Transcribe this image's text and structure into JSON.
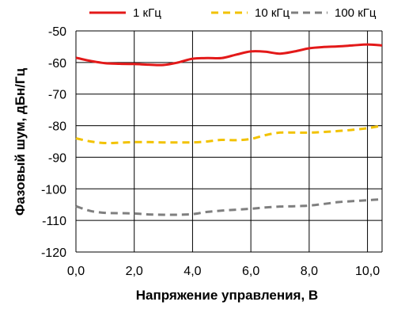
{
  "chart_data": {
    "type": "line",
    "xlabel": "Напряжение управления, В",
    "ylabel": "Фазовый шум, дБн/Гц",
    "xlim": [
      0,
      10.5
    ],
    "ylim": [
      -120,
      -50
    ],
    "x_ticks": [
      0,
      2,
      4,
      6,
      8,
      10
    ],
    "x_tick_labels": [
      "0,0",
      "2,0",
      "4,0",
      "6,0",
      "8,0",
      "10,0"
    ],
    "y_ticks": [
      -50,
      -60,
      -70,
      -80,
      -90,
      -100,
      -110,
      -120
    ],
    "y_tick_labels": [
      "-50",
      "-60",
      "-70",
      "-80",
      "-90",
      "-100",
      "-110",
      "-120"
    ],
    "grid": "horizontal",
    "legend_position": "top",
    "series": [
      {
        "name": "1 кГц",
        "color": "#e31919",
        "style": "solid",
        "x": [
          0,
          0.5,
          1,
          1.5,
          2,
          2.5,
          3,
          3.5,
          4,
          4.5,
          5,
          5.5,
          6,
          6.5,
          7,
          7.5,
          8,
          8.5,
          9,
          9.5,
          10,
          10.5
        ],
        "y": [
          -58.5,
          -59.5,
          -60.2,
          -60.4,
          -60.5,
          -60.7,
          -60.8,
          -60.0,
          -58.8,
          -58.6,
          -58.6,
          -57.5,
          -56.5,
          -56.6,
          -57.2,
          -56.5,
          -55.5,
          -55.1,
          -54.9,
          -54.6,
          -54.3,
          -54.6
        ]
      },
      {
        "name": "10 кГц",
        "color": "#f2c200",
        "style": "dashed",
        "x": [
          0,
          0.5,
          1,
          1.5,
          2,
          2.5,
          3,
          3.5,
          4,
          4.5,
          5,
          5.5,
          6,
          6.5,
          7,
          7.5,
          8,
          8.5,
          9,
          9.5,
          10,
          10.5
        ],
        "y": [
          -84.0,
          -85.0,
          -85.5,
          -85.4,
          -85.2,
          -85.2,
          -85.3,
          -85.3,
          -85.3,
          -85.0,
          -84.5,
          -84.6,
          -84.2,
          -83.0,
          -82.2,
          -82.2,
          -82.2,
          -82.0,
          -81.7,
          -81.3,
          -80.8,
          -80.0
        ]
      },
      {
        "name": "100 кГц",
        "color": "#7f7f7f",
        "style": "dashed",
        "x": [
          0,
          0.5,
          1,
          1.5,
          2,
          2.5,
          3,
          3.5,
          4,
          4.5,
          5,
          5.5,
          6,
          6.5,
          7,
          7.5,
          8,
          8.5,
          9,
          9.5,
          10,
          10.5
        ],
        "y": [
          -105.5,
          -107.0,
          -107.6,
          -107.7,
          -107.8,
          -108.1,
          -108.2,
          -108.2,
          -108.0,
          -107.3,
          -106.9,
          -106.6,
          -106.3,
          -105.9,
          -105.6,
          -105.5,
          -105.3,
          -104.8,
          -104.2,
          -103.9,
          -103.6,
          -103.3
        ]
      }
    ]
  }
}
